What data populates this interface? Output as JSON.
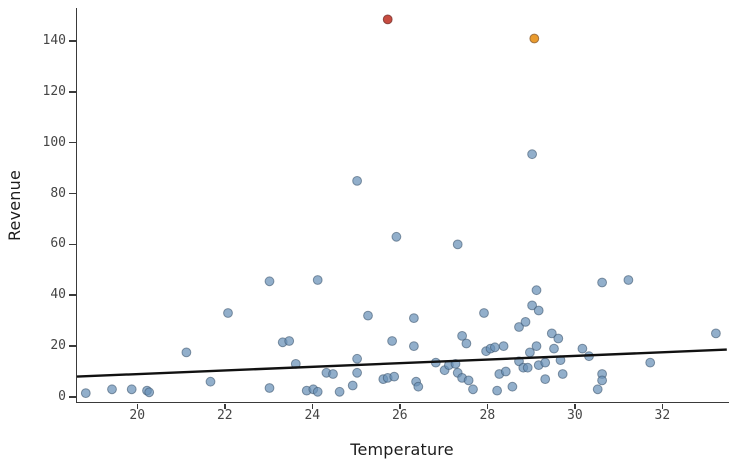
{
  "chart_data": {
    "type": "scatter",
    "title": "",
    "xlabel": "Temperature",
    "ylabel": "Revenue",
    "x_ticks": [
      20,
      22,
      24,
      26,
      28,
      30,
      32
    ],
    "y_ticks": [
      0,
      20,
      40,
      60,
      80,
      100,
      120,
      140
    ],
    "x_range": [
      18.6,
      33.5
    ],
    "y_range": [
      -2,
      153
    ],
    "grid": "off",
    "legend": "none",
    "marker_radius": 4.4,
    "colors": {
      "axis": "#3a3a3a",
      "tick_text": "#454545",
      "label_text": "#1c1c1c",
      "blue_point": "#6890b7",
      "red_point": "#c1392b",
      "orange_point": "#e89623",
      "trend_line": "#111111"
    },
    "series": [
      {
        "name": "observations",
        "fill": "rgba(104,144,183,0.72)",
        "stroke": "rgba(60,85,110,0.6)",
        "points": [
          [
            18.8,
            1.5
          ],
          [
            19.4,
            3
          ],
          [
            19.85,
            3
          ],
          [
            20.2,
            2.5
          ],
          [
            20.25,
            1.8
          ],
          [
            21.1,
            17.5
          ],
          [
            21.65,
            6
          ],
          [
            22.05,
            33
          ],
          [
            23.0,
            45.5
          ],
          [
            23.0,
            3.5
          ],
          [
            23.3,
            21.5
          ],
          [
            23.45,
            22
          ],
          [
            23.6,
            13
          ],
          [
            23.85,
            2.5
          ],
          [
            24.0,
            3
          ],
          [
            24.1,
            2
          ],
          [
            24.1,
            46
          ],
          [
            24.3,
            9.5
          ],
          [
            24.45,
            9
          ],
          [
            24.6,
            2
          ],
          [
            24.9,
            4.5
          ],
          [
            25.0,
            15
          ],
          [
            25.0,
            9.5
          ],
          [
            25.0,
            85
          ],
          [
            25.25,
            32
          ],
          [
            25.6,
            7
          ],
          [
            25.7,
            7.5
          ],
          [
            25.85,
            8
          ],
          [
            25.9,
            63
          ],
          [
            25.8,
            22
          ],
          [
            26.3,
            31
          ],
          [
            26.3,
            20
          ],
          [
            26.35,
            6
          ],
          [
            26.4,
            4
          ],
          [
            26.8,
            13.5
          ],
          [
            27.0,
            10.5
          ],
          [
            27.1,
            12.5
          ],
          [
            27.25,
            13
          ],
          [
            27.3,
            60
          ],
          [
            27.3,
            9.5
          ],
          [
            27.4,
            7.5
          ],
          [
            27.4,
            24
          ],
          [
            27.5,
            21
          ],
          [
            27.55,
            6.5
          ],
          [
            27.65,
            3
          ],
          [
            27.9,
            33
          ],
          [
            27.95,
            18
          ],
          [
            28.05,
            19
          ],
          [
            28.15,
            19.5
          ],
          [
            28.2,
            2.5
          ],
          [
            28.25,
            9
          ],
          [
            28.35,
            20
          ],
          [
            28.4,
            10
          ],
          [
            28.55,
            4
          ],
          [
            28.7,
            27.5
          ],
          [
            28.85,
            29.5
          ],
          [
            28.7,
            14
          ],
          [
            28.8,
            11.5
          ],
          [
            28.9,
            11.5
          ],
          [
            28.95,
            17.5
          ],
          [
            29.0,
            36
          ],
          [
            29.0,
            95.5
          ],
          [
            29.1,
            42
          ],
          [
            29.1,
            20
          ],
          [
            29.15,
            34
          ],
          [
            29.15,
            12.5
          ],
          [
            29.3,
            13.5
          ],
          [
            29.3,
            7
          ],
          [
            29.45,
            25
          ],
          [
            29.5,
            19
          ],
          [
            29.6,
            23
          ],
          [
            29.65,
            14.5
          ],
          [
            29.7,
            9
          ],
          [
            30.15,
            19
          ],
          [
            30.3,
            16
          ],
          [
            30.5,
            3
          ],
          [
            30.6,
            45
          ],
          [
            30.6,
            9
          ],
          [
            30.6,
            6.5
          ],
          [
            31.2,
            46
          ],
          [
            31.7,
            13.5
          ],
          [
            33.2,
            25
          ]
        ]
      },
      {
        "name": "outlier-red",
        "fill": "rgba(193,57,43,0.9)",
        "stroke": "rgba(120,50,45,0.8)",
        "points": [
          [
            25.7,
            148.5
          ]
        ]
      },
      {
        "name": "outlier-orange",
        "fill": "rgba(232,150,35,0.95)",
        "stroke": "rgba(140,95,50,0.8)",
        "points": [
          [
            29.05,
            141
          ]
        ]
      }
    ],
    "trend_line": {
      "x1": 18.6,
      "y1": 8,
      "x2": 33.45,
      "y2": 18.6,
      "width": 2.4
    }
  }
}
